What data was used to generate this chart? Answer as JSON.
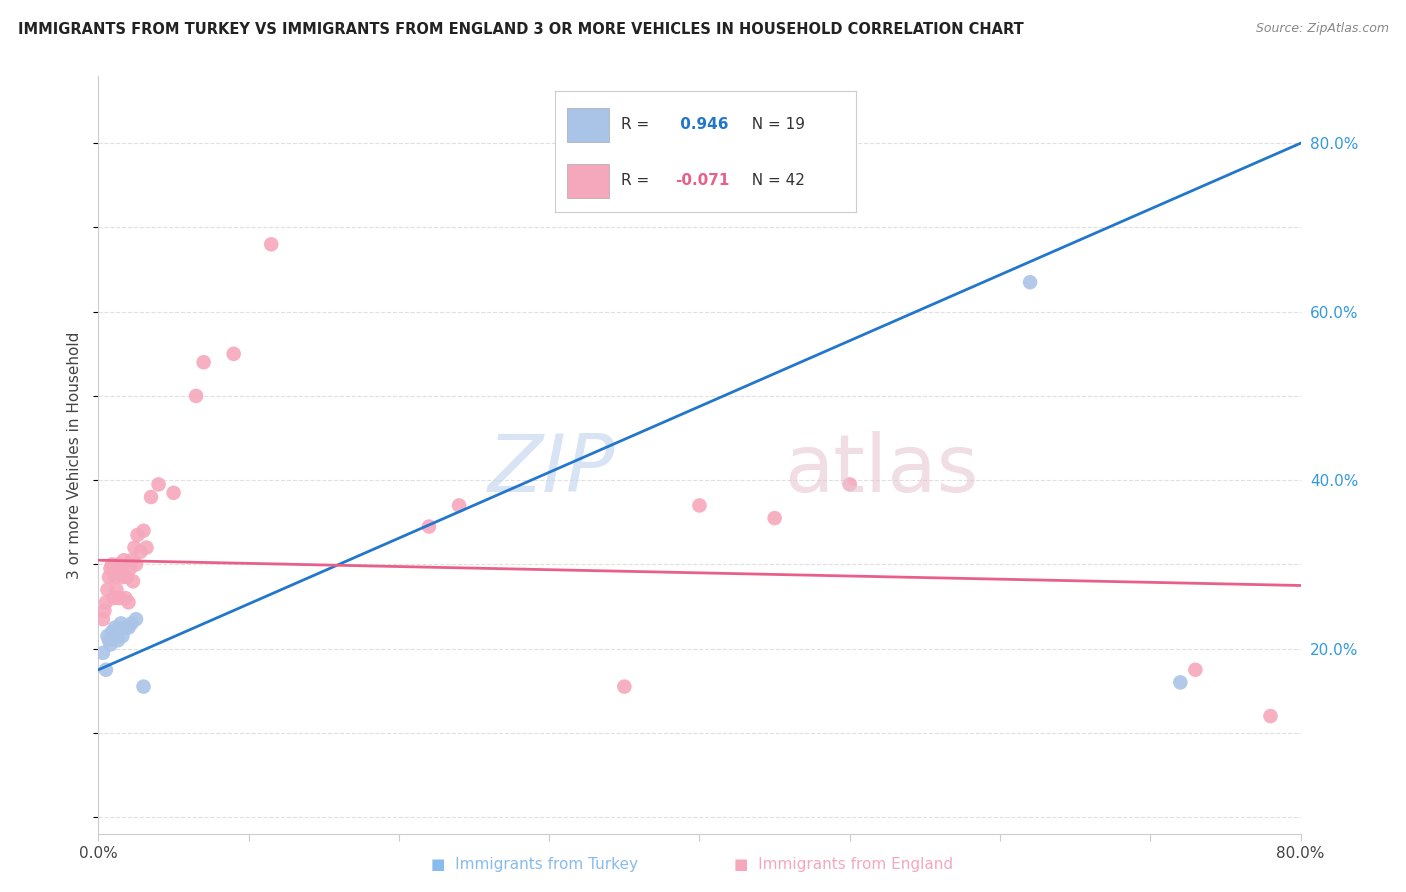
{
  "title": "IMMIGRANTS FROM TURKEY VS IMMIGRANTS FROM ENGLAND 3 OR MORE VEHICLES IN HOUSEHOLD CORRELATION CHART",
  "source": "Source: ZipAtlas.com",
  "ylabel": "3 or more Vehicles in Household",
  "xlim": [
    0.0,
    0.8
  ],
  "ylim": [
    -0.02,
    0.88
  ],
  "yticks": [
    0.0,
    0.2,
    0.4,
    0.6,
    0.8
  ],
  "ytick_labels": [
    "",
    "20.0%",
    "40.0%",
    "60.0%",
    "80.0%"
  ],
  "xticks": [
    0.0,
    0.1,
    0.2,
    0.3,
    0.4,
    0.5,
    0.6,
    0.7,
    0.8
  ],
  "xtick_labels": [
    "0.0%",
    "",
    "",
    "",
    "",
    "",
    "",
    "",
    "80.0%"
  ],
  "turkey_color": "#aac4e8",
  "england_color": "#f5a8bc",
  "turkey_line_color": "#2277cc",
  "england_line_color": "#e8608a",
  "turkey_R": 0.946,
  "turkey_N": 19,
  "england_R": -0.071,
  "england_N": 42,
  "turkey_line_x0": 0.0,
  "turkey_line_y0": 0.175,
  "turkey_line_x1": 0.8,
  "turkey_line_y1": 0.8,
  "england_line_x0": 0.0,
  "england_line_y0": 0.305,
  "england_line_x1": 0.8,
  "england_line_y1": 0.275,
  "turkey_scatter_x": [
    0.003,
    0.005,
    0.006,
    0.007,
    0.008,
    0.009,
    0.01,
    0.011,
    0.012,
    0.013,
    0.015,
    0.016,
    0.018,
    0.02,
    0.022,
    0.025,
    0.03,
    0.62,
    0.72
  ],
  "turkey_scatter_y": [
    0.195,
    0.175,
    0.215,
    0.21,
    0.205,
    0.22,
    0.215,
    0.225,
    0.215,
    0.21,
    0.23,
    0.215,
    0.225,
    0.225,
    0.23,
    0.235,
    0.155,
    0.635,
    0.16
  ],
  "england_scatter_x": [
    0.003,
    0.004,
    0.005,
    0.006,
    0.007,
    0.008,
    0.009,
    0.01,
    0.011,
    0.012,
    0.013,
    0.014,
    0.015,
    0.016,
    0.017,
    0.018,
    0.019,
    0.02,
    0.021,
    0.022,
    0.023,
    0.024,
    0.025,
    0.026,
    0.028,
    0.03,
    0.032,
    0.035,
    0.04,
    0.05,
    0.065,
    0.07,
    0.09,
    0.115,
    0.22,
    0.24,
    0.35,
    0.4,
    0.45,
    0.5,
    0.73,
    0.78
  ],
  "england_scatter_y": [
    0.235,
    0.245,
    0.255,
    0.27,
    0.285,
    0.295,
    0.3,
    0.26,
    0.285,
    0.27,
    0.3,
    0.26,
    0.295,
    0.285,
    0.305,
    0.26,
    0.285,
    0.255,
    0.295,
    0.305,
    0.28,
    0.32,
    0.3,
    0.335,
    0.315,
    0.34,
    0.32,
    0.38,
    0.395,
    0.385,
    0.5,
    0.54,
    0.55,
    0.68,
    0.345,
    0.37,
    0.155,
    0.37,
    0.355,
    0.395,
    0.175,
    0.12
  ],
  "background_color": "#ffffff",
  "grid_color": "#e0e0e0"
}
